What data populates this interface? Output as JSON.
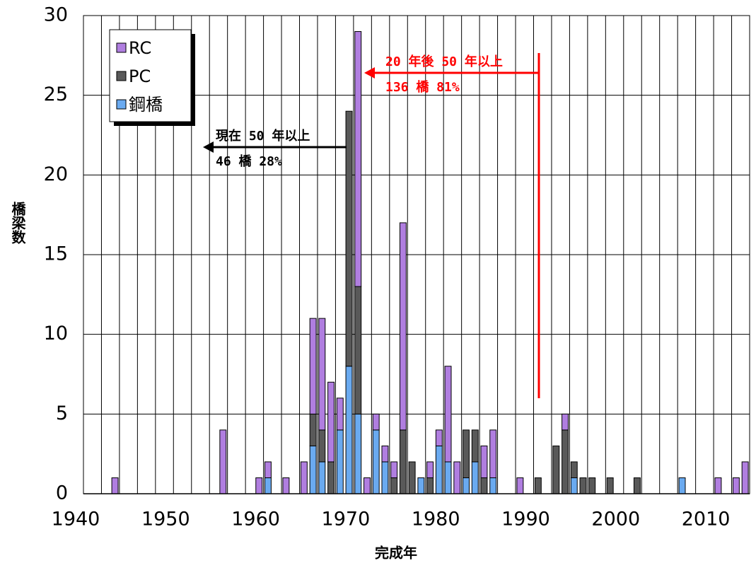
{
  "chart_data": {
    "type": "stacked_bar",
    "xlabel": "完成年",
    "ylabel": "橋梁数",
    "categories": [
      1940,
      null,
      null,
      null,
      null,
      null,
      null,
      null,
      null,
      null,
      1950,
      null,
      null,
      null,
      null,
      null,
      null,
      null,
      null,
      null,
      1960,
      null,
      null,
      null,
      null,
      null,
      null,
      null,
      null,
      null,
      1970,
      null,
      null,
      null,
      null,
      null,
      null,
      null,
      null,
      null,
      1980,
      null,
      null,
      null,
      null,
      null,
      null,
      null,
      null,
      null,
      1990,
      null,
      null,
      null,
      null,
      null,
      null,
      null,
      null,
      null,
      2000,
      null,
      null,
      null,
      null,
      null,
      null,
      null,
      null,
      null,
      2010,
      null,
      null,
      null
    ],
    "series": [
      {
        "name": "鋼橋",
        "color": "#6aaaf0",
        "values": [
          0,
          0,
          0,
          0,
          0,
          0,
          0,
          0,
          0,
          0,
          0,
          0,
          0,
          0,
          0,
          0,
          0,
          0,
          0,
          0,
          1,
          0,
          0,
          0,
          0,
          3,
          2,
          0,
          4,
          8,
          5,
          0,
          4,
          2,
          0,
          0,
          0,
          1,
          0,
          3,
          2,
          0,
          1,
          2,
          0,
          1,
          0,
          0,
          0,
          0,
          0,
          0,
          0,
          0,
          1,
          0,
          0,
          0,
          0,
          0,
          0,
          0,
          0,
          0,
          0,
          0,
          1,
          0,
          0,
          0,
          0,
          0,
          0,
          0
        ]
      },
      {
        "name": "PC",
        "color": "#595959",
        "values": [
          0,
          0,
          0,
          0,
          0,
          0,
          0,
          0,
          0,
          0,
          0,
          0,
          0,
          0,
          0,
          0,
          0,
          0,
          0,
          0,
          0,
          0,
          0,
          0,
          0,
          2,
          2,
          2,
          0,
          16,
          8,
          0,
          0,
          0,
          1,
          4,
          2,
          0,
          1,
          0,
          0,
          0,
          3,
          2,
          1,
          0,
          0,
          0,
          0,
          0,
          1,
          0,
          3,
          4,
          1,
          1,
          1,
          0,
          1,
          0,
          0,
          1,
          0,
          0,
          0,
          0,
          0,
          0,
          0,
          0,
          0,
          0,
          0,
          0
        ]
      },
      {
        "name": "RC",
        "color": "#b07ee0",
        "values": [
          0,
          0,
          0,
          1,
          0,
          0,
          0,
          0,
          0,
          0,
          0,
          0,
          0,
          0,
          0,
          4,
          0,
          0,
          0,
          1,
          1,
          0,
          1,
          0,
          2,
          6,
          7,
          5,
          2,
          0,
          16,
          1,
          1,
          1,
          1,
          13,
          0,
          0,
          1,
          1,
          6,
          2,
          0,
          0,
          2,
          3,
          0,
          0,
          1,
          0,
          0,
          0,
          0,
          1,
          0,
          0,
          0,
          0,
          0,
          0,
          0,
          0,
          0,
          0,
          0,
          0,
          0,
          0,
          0,
          0,
          1,
          0,
          1,
          2
        ]
      }
    ],
    "ylim": [
      0,
      30
    ],
    "yticks": [
      0,
      5,
      10,
      15,
      20,
      25,
      30
    ],
    "grid": true,
    "legend": "upper left",
    "annotations": [
      "20 年後 50 年以上",
      "136 橋 81%",
      "現在 50 年以上",
      "46 橋 28%"
    ]
  }
}
